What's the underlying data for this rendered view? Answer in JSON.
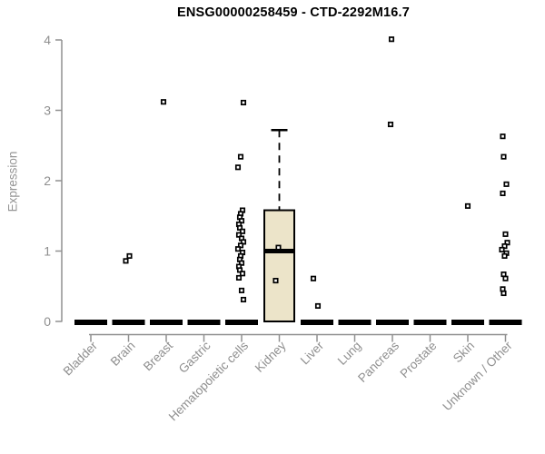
{
  "chart_data": {
    "type": "boxplot",
    "title": "ENSG00000258459 - CTD-2292M16.7",
    "ylabel": "Expression",
    "ylim": [
      0,
      4
    ],
    "yticks": [
      0,
      1,
      2,
      3,
      4
    ],
    "grid": "off",
    "legend": "none",
    "categories": [
      "Bladder",
      "Brain",
      "Breast",
      "Gastric",
      "Hematopoietic cells",
      "Kidney",
      "Liver",
      "Lung",
      "Pancreas",
      "Prostate",
      "Skin",
      "Unknown / Other"
    ],
    "boxplots": [
      {
        "category": "Bladder",
        "q1": 0,
        "median": 0,
        "q3": 0,
        "whisker_high": 0,
        "points": []
      },
      {
        "category": "Brain",
        "q1": 0,
        "median": 0,
        "q3": 0,
        "whisker_high": 0,
        "points": [
          0.93,
          0.86
        ]
      },
      {
        "category": "Breast",
        "q1": 0,
        "median": 0,
        "q3": 0,
        "whisker_high": 0,
        "points": [
          3.12
        ]
      },
      {
        "category": "Gastric",
        "q1": 0,
        "median": 0,
        "q3": 0,
        "whisker_high": 0,
        "points": []
      },
      {
        "category": "Hematopoietic cells",
        "q1": 0,
        "median": 0,
        "q3": 0,
        "whisker_high": 0,
        "points": [
          3.11,
          2.34,
          2.19,
          1.58,
          1.53,
          1.48,
          1.43,
          1.38,
          1.33,
          1.28,
          1.23,
          1.18,
          1.13,
          1.08,
          1.03,
          0.98,
          0.93,
          0.88,
          0.83,
          0.78,
          0.73,
          0.68,
          0.62,
          0.44,
          0.31
        ]
      },
      {
        "category": "Kidney",
        "q1": 0,
        "median": 1.0,
        "q3": 1.58,
        "whisker_high": 2.72,
        "points": [
          1.05,
          0.58
        ]
      },
      {
        "category": "Liver",
        "q1": 0,
        "median": 0,
        "q3": 0,
        "whisker_high": 0,
        "points": [
          0.61,
          0.22
        ]
      },
      {
        "category": "Lung",
        "q1": 0,
        "median": 0,
        "q3": 0,
        "whisker_high": 0,
        "points": []
      },
      {
        "category": "Pancreas",
        "q1": 0,
        "median": 0,
        "q3": 0,
        "whisker_high": 0,
        "points": [
          4.01,
          2.8
        ]
      },
      {
        "category": "Prostate",
        "q1": 0,
        "median": 0,
        "q3": 0,
        "whisker_high": 0,
        "points": []
      },
      {
        "category": "Skin",
        "q1": 0,
        "median": 0,
        "q3": 0,
        "whisker_high": 0,
        "points": [
          1.64
        ]
      },
      {
        "category": "Unknown / Other",
        "q1": 0,
        "median": 0,
        "q3": 0,
        "whisker_high": 0,
        "points": [
          2.63,
          2.34,
          1.95,
          1.82,
          1.24,
          1.12,
          1.07,
          1.02,
          0.97,
          0.93,
          0.67,
          0.61,
          0.46,
          0.4
        ]
      }
    ],
    "colors": {
      "background": "#ffffff",
      "title": "#000000",
      "axis": "#909090",
      "tick_label": "#8f8f8f",
      "box_fill": "#ece4c9",
      "box_border": "#000000",
      "median": "#000000",
      "point": "#000000"
    }
  }
}
